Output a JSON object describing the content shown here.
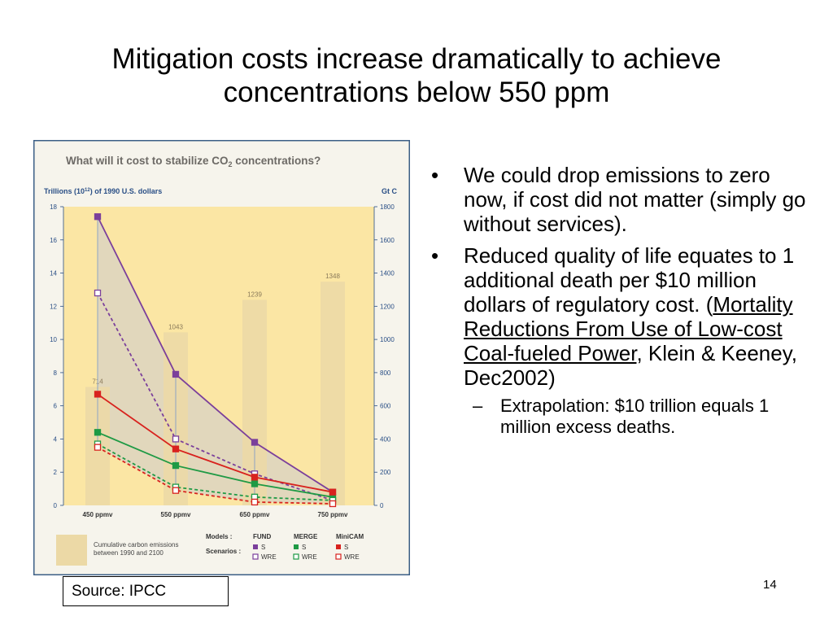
{
  "slide": {
    "title_line1": "Mitigation costs increase dramatically to achieve",
    "title_line2": "concentrations below 550 ppm",
    "page_number": "14",
    "source": "Source:  IPCC",
    "bullets": [
      {
        "text": "We could drop emissions to zero now, if cost did not matter (simply go without services)."
      },
      {
        "pre": "Reduced quality of life equates to 1 additional death per $10 million dollars of regulatory cost. (",
        "link": "Mortality Reductions From Use of Low-cost Coal-fueled Power",
        "post": ", Klein & Keeney, Dec2002)"
      }
    ],
    "sub_bullet": "Extrapolation:  $10 trillion equals 1 million excess deaths.",
    "bullet_symbol": "•",
    "dash_symbol": "–"
  },
  "chart_data": {
    "type": "line",
    "title": "What will it cost to stabilize CO",
    "title_sub": "2",
    "title_suffix": " concentrations?",
    "ylabel_left": "Trillions (10",
    "ylabel_left_sup": "12",
    "ylabel_left_suffix": ") of 1990 U.S. dollars",
    "ylabel_right": "Gt C",
    "categories": [
      "450 ppmv",
      "550 ppmv",
      "650 ppmv",
      "750 ppmv"
    ],
    "ylim": [
      0,
      18
    ],
    "y2lim": [
      0,
      1800
    ],
    "yticks": [
      "0",
      "2",
      "4",
      "6",
      "8",
      "10",
      "12",
      "14",
      "16",
      "18"
    ],
    "y2ticks": [
      "0",
      "200",
      "400",
      "600",
      "800",
      "1000",
      "1200",
      "1400",
      "1600",
      "1800"
    ],
    "bars": {
      "name": "Cumulative carbon emissions between 1990 and 2100",
      "values": [
        714,
        1043,
        1239,
        1348
      ],
      "labels": [
        "714",
        "1043",
        "1239",
        "1348"
      ],
      "color": "#ecd9a6"
    },
    "series": [
      {
        "model": "FUND",
        "scenario": "S",
        "values": [
          17.4,
          7.9,
          3.8,
          0.8
        ],
        "color": "#7b3f9b",
        "dashed": false,
        "filled": true
      },
      {
        "model": "FUND",
        "scenario": "WRE",
        "values": [
          12.8,
          4.0,
          1.9,
          0.3
        ],
        "color": "#7b3f9b",
        "dashed": true,
        "filled": false
      },
      {
        "model": "MERGE",
        "scenario": "S",
        "values": [
          4.4,
          2.4,
          1.3,
          0.5
        ],
        "color": "#1f9a45",
        "dashed": false,
        "filled": true
      },
      {
        "model": "MERGE",
        "scenario": "WRE",
        "values": [
          3.7,
          1.1,
          0.5,
          0.3
        ],
        "color": "#1f9a45",
        "dashed": true,
        "filled": false
      },
      {
        "model": "MiniCAM",
        "scenario": "S",
        "values": [
          6.7,
          3.4,
          1.7,
          0.8
        ],
        "color": "#d8221e",
        "dashed": false,
        "filled": true
      },
      {
        "model": "MiniCAM",
        "scenario": "WRE",
        "values": [
          3.5,
          0.9,
          0.2,
          0.1
        ],
        "color": "#d8221e",
        "dashed": true,
        "filled": false
      }
    ],
    "legend": {
      "bar_label_line1": "Cumulative carbon emissions",
      "bar_label_line2": "between 1990 and 2100",
      "models_label": "Models :",
      "scenarios_label": "Scenarios :",
      "models": [
        "FUND",
        "MERGE",
        "MiniCAM"
      ],
      "scenario_s": "S",
      "scenario_wre": "WRE",
      "colors": [
        "#7b3f9b",
        "#1f9a45",
        "#d8221e"
      ]
    },
    "colors": {
      "frame": "#3c5f86",
      "background": "#f6f4ec",
      "plot_background": "#fbe6a4",
      "grey_band": "#d8d2c4",
      "axis_text": "#2a4f86",
      "title_text": "#6d6a66"
    }
  }
}
